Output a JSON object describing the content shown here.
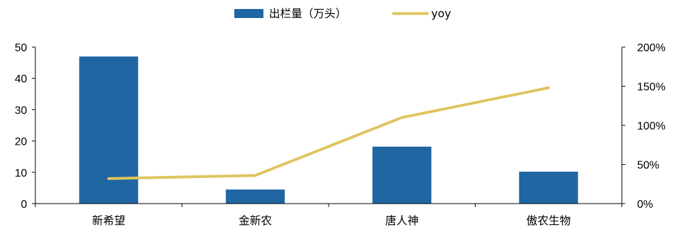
{
  "chart_data": {
    "type": "bar",
    "categories": [
      "新希望",
      "金新农",
      "唐人神",
      "傲农生物"
    ],
    "series": [
      {
        "name": "出栏量（万头）",
        "type": "bar",
        "axis": "left",
        "color": "#1F66A3",
        "values": [
          47,
          4.5,
          18.2,
          10.2
        ]
      },
      {
        "name": "yoy",
        "type": "line",
        "axis": "right",
        "color": "#E0C45E",
        "values": [
          32,
          36,
          110,
          148
        ]
      }
    ],
    "left_axis": {
      "ylim": [
        0,
        50
      ],
      "ticks": [
        "0",
        "10",
        "20",
        "30",
        "40",
        "50"
      ]
    },
    "right_axis": {
      "ylim": [
        0,
        200
      ],
      "ticks": [
        "0%",
        "50%",
        "100%",
        "150%",
        "200%"
      ]
    },
    "legend_position": "top-center",
    "grid": false
  }
}
